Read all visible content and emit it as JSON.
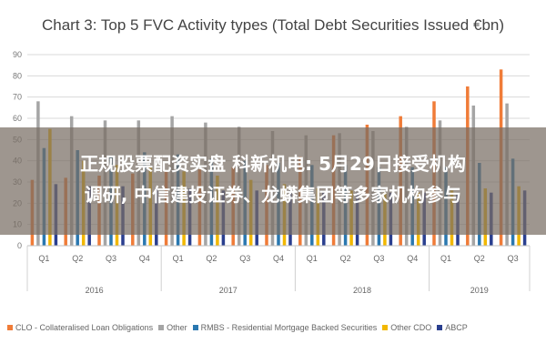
{
  "chart_data": {
    "type": "bar",
    "title": "Chart 3: Top 5 FVC Activity types (Total Debt Securities Issued €bn)",
    "ylim": [
      0,
      90
    ],
    "yticks": [
      0,
      10,
      20,
      30,
      40,
      50,
      60,
      70,
      80,
      90
    ],
    "grid": true,
    "legend_position": "bottom",
    "categories": [
      "Q1",
      "Q2",
      "Q3",
      "Q4",
      "Q1",
      "Q2",
      "Q3",
      "Q4",
      "Q1",
      "Q2",
      "Q3",
      "Q4",
      "Q1",
      "Q2",
      "Q3"
    ],
    "year_groups": [
      {
        "label": "2016",
        "count": 4
      },
      {
        "label": "2017",
        "count": 4
      },
      {
        "label": "2018",
        "count": 4
      },
      {
        "label": "2019",
        "count": 3
      }
    ],
    "series": [
      {
        "name": "CLO - Collateralised Loan Obligations",
        "color": "#f07c38",
        "values": [
          31,
          32,
          33,
          34,
          35,
          36,
          37,
          38,
          42,
          52,
          57,
          61,
          68,
          75,
          83
        ]
      },
      {
        "name": "Other",
        "color": "#a5a5a5",
        "values": [
          68,
          61,
          59,
          59,
          61,
          58,
          56,
          54,
          52,
          53,
          54,
          56,
          59,
          66,
          67
        ]
      },
      {
        "name": "RMBS - Residential Mortgage Backed Securities",
        "color": "#2a78b0",
        "values": [
          46,
          45,
          42,
          44,
          43,
          41,
          40,
          39,
          38,
          38,
          37,
          37,
          37,
          39,
          41
        ]
      },
      {
        "name": "Other CDO",
        "color": "#f2b800",
        "values": [
          55,
          40,
          38,
          37,
          35,
          33,
          31,
          29,
          27,
          26,
          25,
          25,
          26,
          27,
          28
        ]
      },
      {
        "name": "ABCP",
        "color": "#2a3f8f",
        "values": [
          29,
          28,
          28,
          27,
          27,
          26,
          26,
          26,
          25,
          25,
          25,
          25,
          25,
          25,
          26
        ]
      }
    ]
  },
  "overlay": {
    "line1": "正规股票配资实盘 科新机电: 5月29日接受机构",
    "line2": "调研, 中信建投证券、龙蟒集团等多家机构参与"
  }
}
